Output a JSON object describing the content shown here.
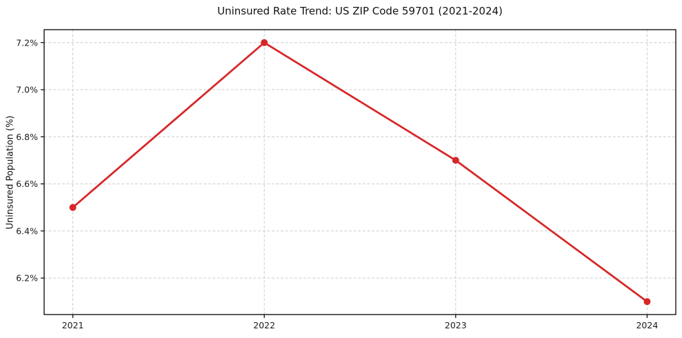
{
  "chart_data": {
    "type": "line",
    "title": "Uninsured Rate Trend: US ZIP Code 59701 (2021-2024)",
    "xlabel": "",
    "ylabel": "Uninsured Population (%)",
    "x": [
      2021,
      2022,
      2023,
      2024
    ],
    "x_tick_labels": [
      "2021",
      "2022",
      "2023",
      "2024"
    ],
    "series": [
      {
        "name": "Uninsured rate",
        "values": [
          6.5,
          7.2,
          6.7,
          6.1
        ],
        "color": "#d62728",
        "marker": "circle"
      }
    ],
    "yticks": [
      6.2,
      6.4,
      6.6,
      6.8,
      7.0,
      7.2
    ],
    "y_tick_labels": [
      "6.2%",
      "6.4%",
      "6.6%",
      "6.8%",
      "7.0%",
      "7.2%"
    ],
    "xlim": [
      2020.85,
      2024.15
    ],
    "ylim": [
      6.045,
      7.255
    ],
    "grid": true,
    "grid_style": "dashed",
    "grid_color": "#cccccc",
    "axis_color": "#000000",
    "text_color": "#1a1a1a",
    "background_color": "#ffffff",
    "legend": "none"
  }
}
